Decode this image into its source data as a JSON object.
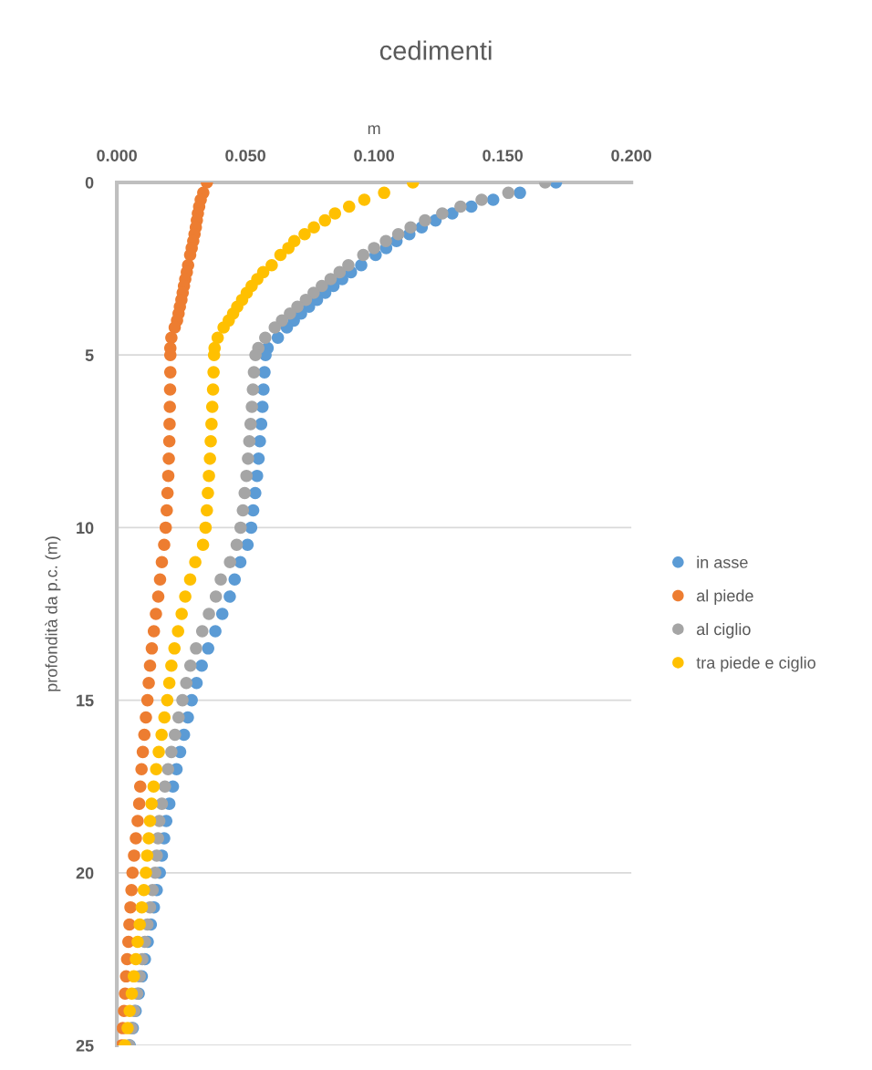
{
  "chart_data": {
    "type": "scatter",
    "title": "cedimenti",
    "xlabel": "m",
    "ylabel": "profondità da p.c. (m)",
    "xlim": [
      0,
      0.2
    ],
    "xticks": [
      {
        "value": 0,
        "label": "0.000"
      },
      {
        "value": 0.05,
        "label": "0.050"
      },
      {
        "value": 0.1,
        "label": "0.100"
      },
      {
        "value": 0.15,
        "label": "0.150"
      },
      {
        "value": 0.2,
        "label": "0.200"
      }
    ],
    "ylim": [
      25,
      0
    ],
    "yticks": [
      0,
      5,
      10,
      15,
      20,
      25
    ],
    "grid": "y",
    "legend": "right",
    "marker": "circle",
    "series": [
      {
        "name": "in asse",
        "color": "#5b9bd5",
        "x": [
          0.1707,
          0.1567,
          0.1463,
          0.1378,
          0.1304,
          0.1239,
          0.1185,
          0.1137,
          0.1087,
          0.1047,
          0.1006,
          0.095,
          0.091,
          0.0876,
          0.0842,
          0.081,
          0.0778,
          0.0747,
          0.0716,
          0.0688,
          0.0661,
          0.0626,
          0.0586,
          0.0578,
          0.0574,
          0.057,
          0.0566,
          0.0561,
          0.0556,
          0.0551,
          0.0545,
          0.0538,
          0.053,
          0.0522,
          0.0508,
          0.048,
          0.0458,
          0.0439,
          0.041,
          0.0383,
          0.0355,
          0.033,
          0.031,
          0.0291,
          0.0276,
          0.0261,
          0.0246,
          0.0232,
          0.0218,
          0.0204,
          0.0192,
          0.0184,
          0.0175,
          0.0167,
          0.0155,
          0.0144,
          0.0132,
          0.012,
          0.0109,
          0.0097,
          0.0085,
          0.0073,
          0.0062,
          0.005
        ],
        "values": [
          0,
          0.3,
          0.5,
          0.7,
          0.9,
          1.1,
          1.3,
          1.5,
          1.7,
          1.9,
          2.1,
          2.4,
          2.6,
          2.8,
          3,
          3.2,
          3.4,
          3.6,
          3.8,
          4,
          4.2,
          4.5,
          4.8,
          5,
          5.5,
          6,
          6.5,
          7,
          7.5,
          8,
          8.5,
          9,
          9.5,
          10,
          10.5,
          11,
          11.5,
          12,
          12.5,
          13,
          13.5,
          14,
          14.5,
          15,
          15.5,
          16,
          16.5,
          17,
          17.5,
          18,
          18.5,
          19,
          19.5,
          20,
          20.5,
          21,
          21.5,
          22,
          22.5,
          23,
          23.5,
          24,
          24.5,
          25
        ]
      },
      {
        "name": "al piede",
        "color": "#ed7d31",
        "x": [
          0.035,
          0.0336,
          0.0326,
          0.032,
          0.0315,
          0.0311,
          0.0307,
          0.0302,
          0.0297,
          0.0291,
          0.0285,
          0.0277,
          0.0272,
          0.0266,
          0.0261,
          0.0256,
          0.0251,
          0.0245,
          0.024,
          0.0234,
          0.0225,
          0.0212,
          0.0208,
          0.0208,
          0.0208,
          0.0207,
          0.0206,
          0.0205,
          0.0204,
          0.0202,
          0.02,
          0.0197,
          0.0194,
          0.019,
          0.0184,
          0.0175,
          0.0168,
          0.0161,
          0.0152,
          0.0144,
          0.0136,
          0.0129,
          0.0124,
          0.0119,
          0.0113,
          0.0107,
          0.0101,
          0.0096,
          0.0091,
          0.0087,
          0.0081,
          0.0074,
          0.0067,
          0.0061,
          0.0057,
          0.0053,
          0.0049,
          0.0045,
          0.004,
          0.0036,
          0.0032,
          0.0028,
          0.0023,
          0.0019
        ],
        "values": [
          0,
          0.3,
          0.5,
          0.7,
          0.9,
          1.1,
          1.3,
          1.5,
          1.7,
          1.9,
          2.1,
          2.4,
          2.6,
          2.8,
          3,
          3.2,
          3.4,
          3.6,
          3.8,
          4,
          4.2,
          4.5,
          4.8,
          5,
          5.5,
          6,
          6.5,
          7,
          7.5,
          8,
          8.5,
          9,
          9.5,
          10,
          10.5,
          11,
          11.5,
          12,
          12.5,
          13,
          13.5,
          14,
          14.5,
          15,
          15.5,
          16,
          16.5,
          17,
          17.5,
          18,
          18.5,
          19,
          19.5,
          20,
          20.5,
          21,
          21.5,
          22,
          22.5,
          23,
          23.5,
          24,
          24.5,
          25
        ]
      },
      {
        "name": "al ciglio",
        "color": "#a5a5a5",
        "x": [
          0.1665,
          0.1522,
          0.1418,
          0.1336,
          0.1265,
          0.1198,
          0.1142,
          0.1094,
          0.1046,
          0.1,
          0.0958,
          0.09,
          0.0866,
          0.0831,
          0.0797,
          0.0765,
          0.0735,
          0.0702,
          0.0673,
          0.0642,
          0.0614,
          0.0577,
          0.055,
          0.0539,
          0.0533,
          0.0529,
          0.0525,
          0.052,
          0.0515,
          0.051,
          0.0504,
          0.0497,
          0.049,
          0.0481,
          0.0466,
          0.044,
          0.0404,
          0.0385,
          0.0358,
          0.0332,
          0.0308,
          0.0286,
          0.027,
          0.0255,
          0.024,
          0.0226,
          0.0212,
          0.0199,
          0.0187,
          0.0175,
          0.0165,
          0.016,
          0.0155,
          0.0149,
          0.0139,
          0.0129,
          0.0119,
          0.0109,
          0.0099,
          0.0089,
          0.0079,
          0.0068,
          0.0058,
          0.0048
        ],
        "values": [
          0,
          0.3,
          0.5,
          0.7,
          0.9,
          1.1,
          1.3,
          1.5,
          1.7,
          1.9,
          2.1,
          2.4,
          2.6,
          2.8,
          3,
          3.2,
          3.4,
          3.6,
          3.8,
          4,
          4.2,
          4.5,
          4.8,
          5,
          5.5,
          6,
          6.5,
          7,
          7.5,
          8,
          8.5,
          9,
          9.5,
          10,
          10.5,
          11,
          11.5,
          12,
          12.5,
          13,
          13.5,
          14,
          14.5,
          15,
          15.5,
          16,
          16.5,
          17,
          17.5,
          18,
          18.5,
          19,
          19.5,
          20,
          20.5,
          21,
          21.5,
          22,
          22.5,
          23,
          23.5,
          24,
          24.5,
          25
        ]
      },
      {
        "name": "tra piede e ciglio",
        "color": "#ffc000",
        "x": [
          0.1151,
          0.1039,
          0.0962,
          0.0903,
          0.0848,
          0.0809,
          0.0766,
          0.073,
          0.069,
          0.0667,
          0.0636,
          0.0602,
          0.0569,
          0.0546,
          0.0524,
          0.0505,
          0.0487,
          0.0468,
          0.0452,
          0.0435,
          0.0415,
          0.0392,
          0.038,
          0.0378,
          0.0376,
          0.0374,
          0.0371,
          0.0368,
          0.0365,
          0.0362,
          0.0358,
          0.0354,
          0.035,
          0.0345,
          0.0335,
          0.0305,
          0.0285,
          0.0266,
          0.0252,
          0.0238,
          0.0224,
          0.0212,
          0.0204,
          0.0196,
          0.0185,
          0.0174,
          0.0163,
          0.0153,
          0.0143,
          0.0135,
          0.0129,
          0.0124,
          0.0118,
          0.0113,
          0.0105,
          0.0097,
          0.0089,
          0.0081,
          0.0074,
          0.0066,
          0.0058,
          0.005,
          0.0042,
          0.0031
        ],
        "values": [
          0,
          0.3,
          0.5,
          0.7,
          0.9,
          1.1,
          1.3,
          1.5,
          1.7,
          1.9,
          2.1,
          2.4,
          2.6,
          2.8,
          3,
          3.2,
          3.4,
          3.6,
          3.8,
          4,
          4.2,
          4.5,
          4.8,
          5,
          5.5,
          6,
          6.5,
          7,
          7.5,
          8,
          8.5,
          9,
          9.5,
          10,
          10.5,
          11,
          11.5,
          12,
          12.5,
          13,
          13.5,
          14,
          14.5,
          15,
          15.5,
          16,
          16.5,
          17,
          17.5,
          18,
          18.5,
          19,
          19.5,
          20,
          20.5,
          21,
          21.5,
          22,
          22.5,
          23,
          23.5,
          24,
          24.5,
          25
        ]
      }
    ]
  }
}
